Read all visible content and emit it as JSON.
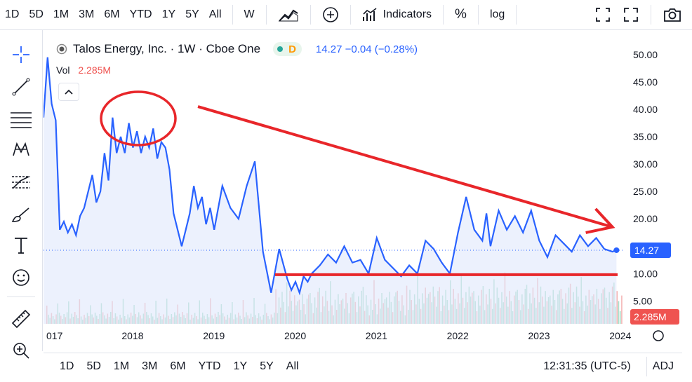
{
  "toolbar": {
    "timeframes": [
      "1D",
      "5D",
      "1M",
      "3M",
      "6M",
      "YTD",
      "1Y",
      "5Y",
      "All"
    ],
    "interval": "W",
    "indicators_label": "Indicators",
    "percent_label": "%",
    "log_label": "log"
  },
  "legend": {
    "title": "Talos Energy, Inc. · 1W · Cboe One",
    "badge": "D",
    "price_info": "14.27 −0.04 (−0.28%)",
    "vol_label": "Vol",
    "vol_value": "2.285M"
  },
  "bottombar": {
    "ranges": [
      "1D",
      "5D",
      "1M",
      "3M",
      "6M",
      "YTD",
      "1Y",
      "5Y",
      "All"
    ],
    "time": "12:31:35 (UTC-5)",
    "adj": "ADJ"
  },
  "colors": {
    "line": "#2962ff",
    "area": "#dfe7fb",
    "annotation": "#e8262a",
    "volume_up": "#a6dcc6",
    "volume_down": "#f3b0b0",
    "price_badge": "#2962ff",
    "volume_badge": "#ef5350"
  },
  "chart_data": {
    "type": "line",
    "title": "Talos Energy, Inc. · 1W · Cboe One",
    "x_ticks": [
      "017",
      "2018",
      "2019",
      "2020",
      "2021",
      "2022",
      "2023",
      "2024"
    ],
    "y_ticks": [
      50,
      45,
      40,
      35,
      30,
      25,
      20,
      15,
      10,
      5
    ],
    "y_tick_labels": [
      "50.00",
      "45.00",
      "40.00",
      "35.00",
      "30.00",
      "25.00",
      "20.00",
      "15.00",
      "10.00",
      "5.00"
    ],
    "ylim": [
      3,
      51
    ],
    "last_price_label": "14.27",
    "volume_label": "2.285M",
    "series": [
      {
        "x": [
          2016.9,
          2016.95,
          2017.0,
          2017.05,
          2017.1,
          2017.15,
          2017.2,
          2017.25,
          2017.3,
          2017.35,
          2017.4,
          2017.45,
          2017.5,
          2017.55,
          2017.6,
          2017.65,
          2017.7,
          2017.75,
          2017.8,
          2017.85,
          2017.9,
          2017.95,
          2018.0,
          2018.05,
          2018.1,
          2018.15,
          2018.2,
          2018.25,
          2018.3,
          2018.35,
          2018.4,
          2018.45,
          2018.5,
          2018.55,
          2018.6,
          2018.65,
          2018.7,
          2018.75,
          2018.8,
          2018.85,
          2018.9,
          2018.95,
          2019.0,
          2019.1,
          2019.2,
          2019.3,
          2019.4,
          2019.5,
          2019.6,
          2019.7,
          2019.8,
          2019.9,
          2019.95,
          2020.0,
          2020.05,
          2020.1,
          2020.15,
          2020.2,
          2020.3,
          2020.4,
          2020.5,
          2020.6,
          2020.7,
          2020.8,
          2020.9,
          2021.0,
          2021.1,
          2021.2,
          2021.3,
          2021.4,
          2021.5,
          2021.6,
          2021.7,
          2021.8,
          2021.9,
          2022.0,
          2022.1,
          2022.2,
          2022.3,
          2022.35,
          2022.4,
          2022.5,
          2022.6,
          2022.7,
          2022.8,
          2022.9,
          2023.0,
          2023.1,
          2023.2,
          2023.3,
          2023.4,
          2023.5,
          2023.6,
          2023.7,
          2023.8,
          2023.9,
          2023.95
        ],
        "y": [
          38.5,
          49.5,
          41.0,
          38.0,
          18.0,
          19.5,
          17.5,
          19.0,
          17.0,
          20.5,
          22.0,
          25.0,
          28.0,
          23.0,
          25.0,
          32.0,
          27.0,
          38.5,
          32.0,
          35.0,
          32.0,
          37.5,
          33.0,
          36.0,
          32.0,
          35.0,
          33.0,
          36.5,
          31.0,
          34.0,
          33.0,
          29.0,
          21.0,
          18.0,
          15.0,
          18.0,
          21.0,
          26.0,
          22.0,
          24.0,
          19.0,
          22.0,
          18.0,
          26.0,
          22.0,
          20.0,
          26.0,
          30.5,
          14.0,
          6.5,
          14.5,
          9.0,
          7.0,
          8.5,
          6.5,
          9.5,
          8.5,
          10.0,
          11.5,
          13.5,
          12.0,
          15.0,
          12.0,
          12.5,
          10.0,
          16.5,
          12.5,
          11.0,
          9.5,
          11.5,
          10.0,
          16.0,
          14.5,
          12.0,
          10.0,
          17.5,
          24.0,
          18.0,
          16.0,
          21.0,
          15.0,
          21.5,
          18.0,
          20.5,
          17.5,
          21.5,
          16.0,
          13.0,
          17.0,
          15.5,
          14.0,
          17.0,
          15.0,
          16.5,
          14.5,
          14.0,
          14.27
        ]
      }
    ],
    "annotations": [
      {
        "type": "ellipse",
        "label": "top circle"
      },
      {
        "type": "trendline_arrow",
        "from": [
          2018.8,
          40.5
        ],
        "to": [
          2023.9,
          18.5
        ]
      },
      {
        "type": "horizontal_line",
        "y": 9.8
      }
    ]
  }
}
